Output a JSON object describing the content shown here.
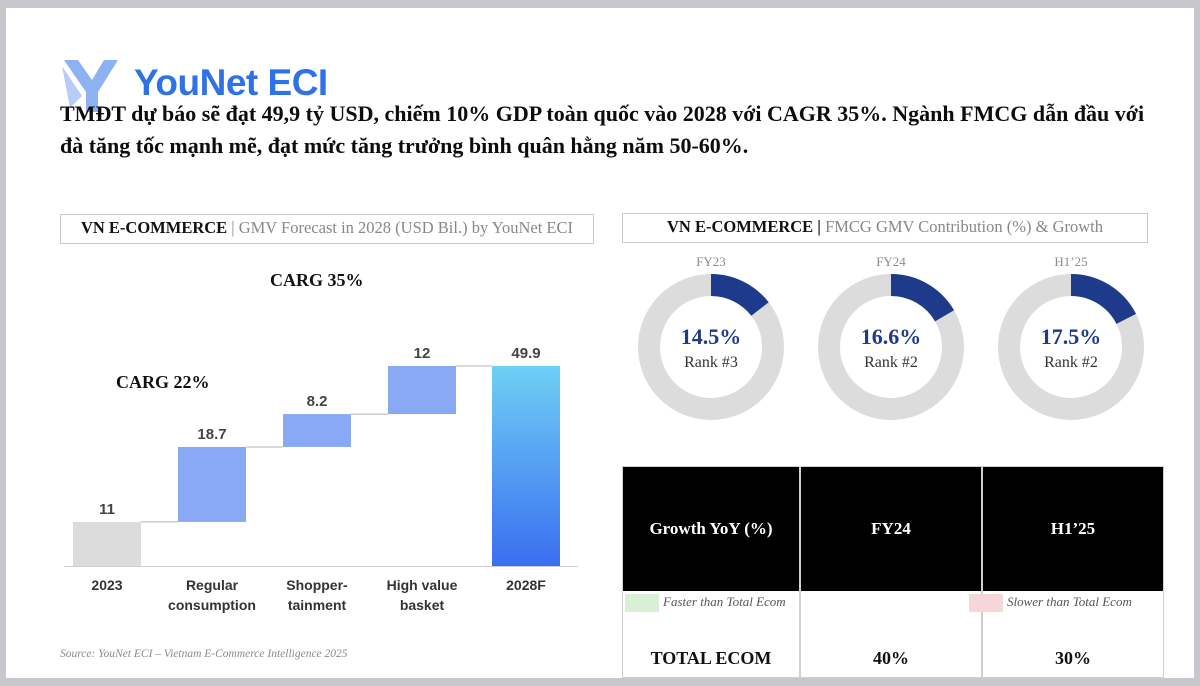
{
  "logo": {
    "text": "YouNet ECI"
  },
  "headline": "TMĐT dự báo sẽ đạt 49,9 tỷ USD, chiếm 10% GDP toàn quốc vào 2028 với CAGR 35%. Ngành FMCG dẫn đầu với đà tăng tốc mạnh mẽ, đạt mức tăng trưởng bình quân hằng năm 50-60%.",
  "waterfall": {
    "title_bold": "VN E-COMMERCE",
    "title_rest": " | GMV Forecast in 2028 (USD Bil.) by YouNet ECI",
    "carg_top": "CARG 35%",
    "carg_left": "CARG 22%",
    "source": "Source: YouNet ECI – Vietnam E-Commerce Intelligence 2025"
  },
  "donuts": {
    "title_bold": "VN E-COMMERCE |",
    "title_rest": " FMCG GMV Contribution (%) & Growth",
    "items": [
      {
        "period": "FY23",
        "pct_label": "14.5%",
        "value": 14.5,
        "rank": "Rank #3"
      },
      {
        "period": "FY24",
        "pct_label": "16.6%",
        "value": 16.6,
        "rank": "Rank #2"
      },
      {
        "period": "H1’25",
        "pct_label": "17.5%",
        "value": 17.5,
        "rank": "Rank #2"
      }
    ],
    "colors": {
      "fill": "#1e3a8a",
      "track": "#dcdcdc"
    }
  },
  "growth_table": {
    "header": [
      "Growth YoY (%)",
      "FY24",
      "H1’25"
    ],
    "legend_fast": "Faster than Total Ecom",
    "legend_slow": "Slower than Total Ecom",
    "legend_fast_color": "#d8f0d6",
    "legend_slow_color": "#f6d7d9",
    "row": [
      "TOTAL ECOM",
      "40%",
      "30%"
    ]
  },
  "chart_data": [
    {
      "type": "bar",
      "subtype": "waterfall",
      "title": "VN E-COMMERCE | GMV Forecast in 2028 (USD Bil.) by YouNet ECI",
      "categories": [
        "2023",
        "Regular consumption",
        "Shopper-tainment",
        "High value basket",
        "2028F"
      ],
      "category_lines": [
        [
          "2023"
        ],
        [
          "Regular",
          "consumption"
        ],
        [
          "Shopper-",
          "tainment"
        ],
        [
          "High value",
          "basket"
        ],
        [
          "2028F"
        ]
      ],
      "values": [
        11,
        18.7,
        8.2,
        12,
        49.9
      ],
      "value_labels": [
        "11",
        "18.7",
        "8.2",
        "12",
        "49.9"
      ],
      "kinds": [
        "total",
        "increase",
        "increase",
        "increase",
        "total"
      ],
      "colors": {
        "start": "#dcdcdc",
        "increase": "#8aa9f5",
        "end_top": "#6fd0f5",
        "end_bottom": "#3a6ef0"
      },
      "annotations": [
        "CARG 35%",
        "CARG 22%"
      ]
    },
    {
      "type": "pie",
      "subtype": "donut",
      "title": "VN E-COMMERCE | FMCG GMV Contribution (%) & Growth",
      "categories": [
        "FY23",
        "FY24",
        "H1’25"
      ],
      "values": [
        14.5,
        16.6,
        17.5
      ],
      "labels": [
        "Rank #3",
        "Rank #2",
        "Rank #2"
      ]
    }
  ]
}
